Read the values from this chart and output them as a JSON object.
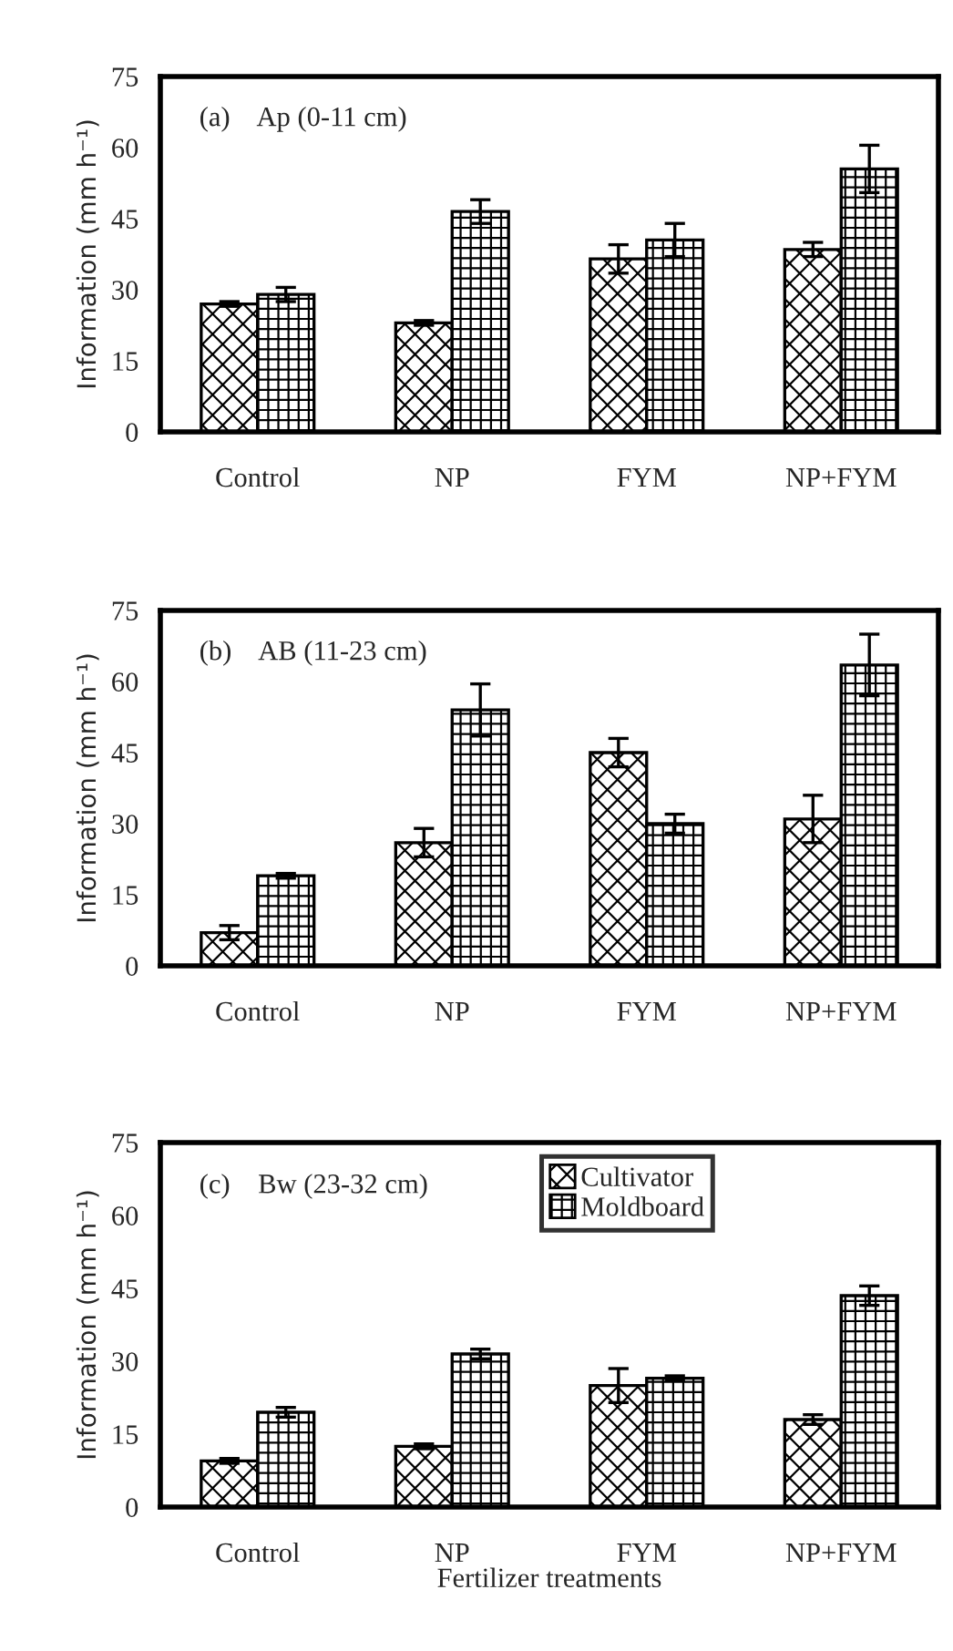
{
  "chart_data": [
    {
      "type": "bar",
      "title": "(a)    Ap (0-11 cm)",
      "ylabel": "Information (mm h⁻¹)",
      "categories": [
        "Control",
        "NP",
        "FYM",
        "NP+FYM"
      ],
      "ylim": [
        0,
        75
      ],
      "yticks": [
        0,
        15,
        30,
        45,
        60,
        75
      ],
      "grid": false,
      "legend": false,
      "series": [
        {
          "color": "#000000",
          "values": [
            27,
            23,
            36.5,
            38.5
          ],
          "errors": [
            0.5,
            0.5,
            3,
            1.5
          ]
        },
        {
          "color": "#000000",
          "values": [
            29,
            46.5,
            40.5,
            55.5
          ],
          "errors": [
            1.5,
            2.5,
            3.5,
            5
          ]
        }
      ]
    },
    {
      "type": "bar",
      "title": "(b)    AB (11-23 cm)",
      "ylabel": "Information (mm h⁻¹)",
      "categories": [
        "Control",
        "NP",
        "FYM",
        "NP+FYM"
      ],
      "ylim": [
        0,
        75
      ],
      "yticks": [
        0,
        15,
        30,
        45,
        60,
        75
      ],
      "grid": false,
      "legend": false,
      "series": [
        {
          "color": "#000000",
          "values": [
            7,
            26,
            45,
            31
          ],
          "errors": [
            1.5,
            3,
            3,
            5
          ]
        },
        {
          "color": "#000000",
          "values": [
            19,
            54,
            30,
            63.5
          ],
          "errors": [
            0.5,
            5.5,
            2,
            6.5
          ]
        }
      ]
    },
    {
      "type": "bar",
      "title": "(c)    Bw (23-32 cm)",
      "ylabel": "Information (mm h⁻¹)",
      "xlabel": "Fertilizer treatments",
      "categories": [
        "Control",
        "NP",
        "FYM",
        "NP+FYM"
      ],
      "ylim": [
        0,
        75
      ],
      "yticks": [
        0,
        15,
        30,
        45,
        60,
        75
      ],
      "grid": false,
      "legend": "top",
      "series": [
        {
          "name": "Cultivator",
          "color": "#000000",
          "values": [
            9.5,
            12.5,
            25,
            18
          ],
          "errors": [
            0.5,
            0.5,
            3.5,
            1
          ]
        },
        {
          "name": "Moldboard",
          "color": "#000000",
          "values": [
            19.5,
            31.5,
            26.5,
            43.5
          ],
          "errors": [
            1,
            1,
            0.5,
            2
          ]
        }
      ]
    }
  ]
}
